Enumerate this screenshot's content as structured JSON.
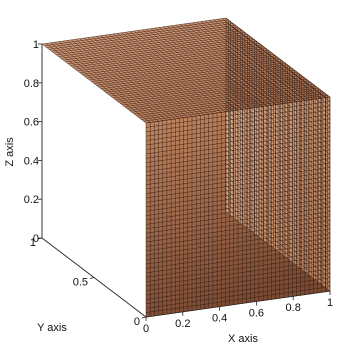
{
  "chart_data": {
    "type": "surface-3d",
    "title": "",
    "xlabel": "X axis",
    "ylabel": "Y axis",
    "zlabel": "Z axis",
    "xlim": [
      0,
      1
    ],
    "ylim": [
      0,
      1
    ],
    "zlim": [
      0,
      1
    ],
    "x_ticks": [
      "0",
      "0.2",
      "0.4",
      "0.6",
      "0.8",
      "1"
    ],
    "y_ticks": [
      "0",
      "0.5",
      "1"
    ],
    "z_ticks": [
      "0",
      "0.2",
      "0.4",
      "0.6",
      "0.8",
      "1"
    ],
    "surface": "unit cube (faces x=1, y=0, z=1 visible)",
    "colormap": "copper",
    "colors": {
      "top_light": "#d9a07e",
      "top_dark": "#b37352",
      "left_light": "#c88a63",
      "left_dark": "#7a4a33",
      "right_light": "#e8b898",
      "right_dark": "#c58a65",
      "mesh": "#2a1a12"
    }
  }
}
